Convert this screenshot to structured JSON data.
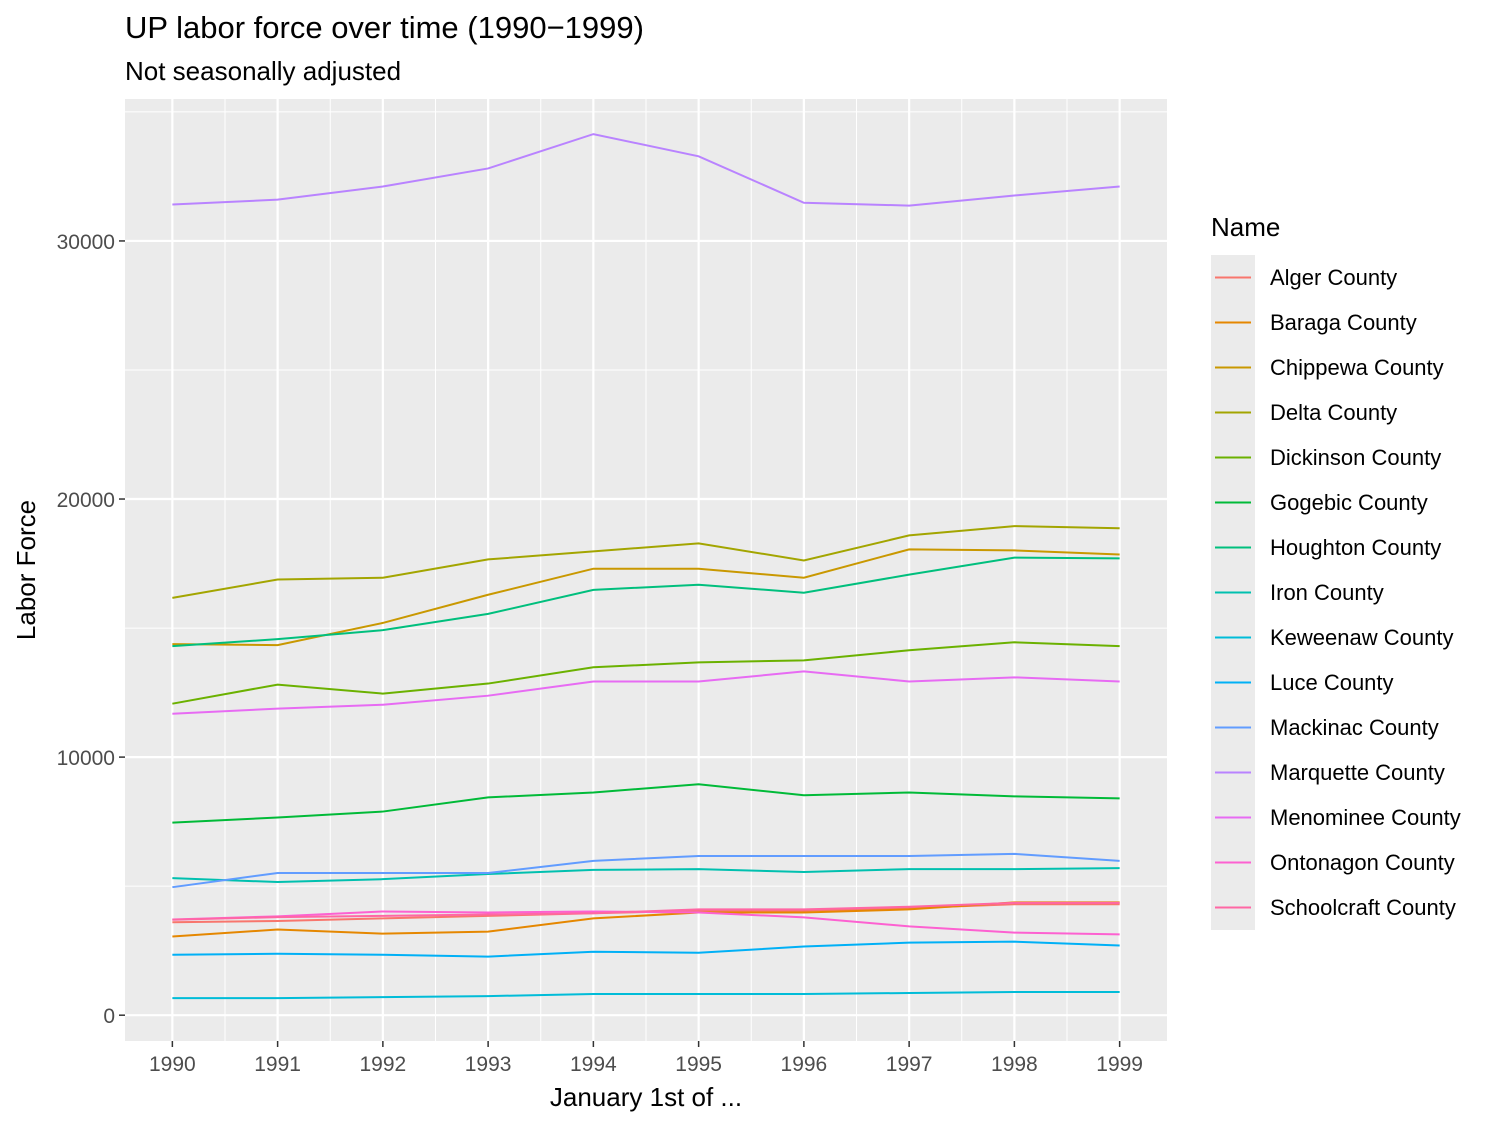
{
  "chart_data": {
    "type": "line",
    "title": "UP labor force over time (1990−1999)",
    "subtitle": "Not seasonally adjusted",
    "xlabel": "January 1st of ...",
    "ylabel": "Labor Force",
    "x": [
      1990,
      1991,
      1992,
      1993,
      1994,
      1995,
      1996,
      1997,
      1998,
      1999
    ],
    "xlim": [
      1989.55,
      1999.45
    ],
    "ylim": [
      -1000,
      35500
    ],
    "yticks": [
      0,
      10000,
      20000,
      30000
    ],
    "grid": true,
    "legend_title": "Name",
    "legend_position": "right",
    "series": [
      {
        "name": "Alger County",
        "color": "#F8766D",
        "values": [
          3600,
          3650,
          3750,
          3850,
          3950,
          4050,
          4050,
          4150,
          4300,
          4300
        ]
      },
      {
        "name": "Baraga County",
        "color": "#E58700",
        "values": [
          3050,
          3320,
          3160,
          3240,
          3750,
          3980,
          3980,
          4100,
          4370,
          4370
        ]
      },
      {
        "name": "Chippewa County",
        "color": "#C99800",
        "values": [
          14380,
          14340,
          15200,
          16290,
          17300,
          17300,
          16950,
          18050,
          18010,
          17850
        ]
      },
      {
        "name": "Delta County",
        "color": "#A3A500",
        "values": [
          16170,
          16880,
          16950,
          17660,
          17970,
          18280,
          17620,
          18590,
          18950,
          18870
        ]
      },
      {
        "name": "Dickinson County",
        "color": "#6BB100",
        "values": [
          12070,
          12810,
          12460,
          12850,
          13480,
          13670,
          13750,
          14140,
          14450,
          14300
        ]
      },
      {
        "name": "Gogebic County",
        "color": "#00BA38",
        "values": [
          7460,
          7660,
          7890,
          8440,
          8630,
          8950,
          8520,
          8630,
          8480,
          8400
        ]
      },
      {
        "name": "Houghton County",
        "color": "#00BF7D",
        "values": [
          14300,
          14570,
          14920,
          15550,
          16480,
          16680,
          16370,
          17070,
          17730,
          17700
        ]
      },
      {
        "name": "Iron County",
        "color": "#00C0AF",
        "values": [
          5310,
          5160,
          5270,
          5470,
          5630,
          5660,
          5550,
          5660,
          5660,
          5700
        ]
      },
      {
        "name": "Keweenaw County",
        "color": "#00BCD8",
        "values": [
          660,
          660,
          700,
          740,
          820,
          820,
          820,
          860,
          900,
          900
        ]
      },
      {
        "name": "Luce County",
        "color": "#00B0F6",
        "values": [
          2340,
          2380,
          2340,
          2270,
          2460,
          2420,
          2660,
          2810,
          2850,
          2700
        ]
      },
      {
        "name": "Mackinac County",
        "color": "#619CFF",
        "values": [
          4960,
          5510,
          5510,
          5510,
          5980,
          6170,
          6170,
          6170,
          6250,
          5980
        ]
      },
      {
        "name": "Marquette County",
        "color": "#B983FF",
        "values": [
          31410,
          31600,
          32110,
          32810,
          34140,
          33280,
          31480,
          31370,
          31760,
          32110
        ]
      },
      {
        "name": "Menominee County",
        "color": "#E76BF3",
        "values": [
          11680,
          11880,
          12030,
          12380,
          12930,
          12930,
          13320,
          12930,
          13090,
          12930
        ]
      },
      {
        "name": "Ontonagon County",
        "color": "#FD61D1",
        "values": [
          3710,
          3830,
          4020,
          3980,
          4020,
          3980,
          3790,
          3440,
          3200,
          3130
        ]
      },
      {
        "name": "Schoolcraft County",
        "color": "#FF67A4",
        "values": [
          3700,
          3800,
          3850,
          3900,
          3950,
          4100,
          4100,
          4200,
          4350,
          4350
        ]
      }
    ]
  }
}
